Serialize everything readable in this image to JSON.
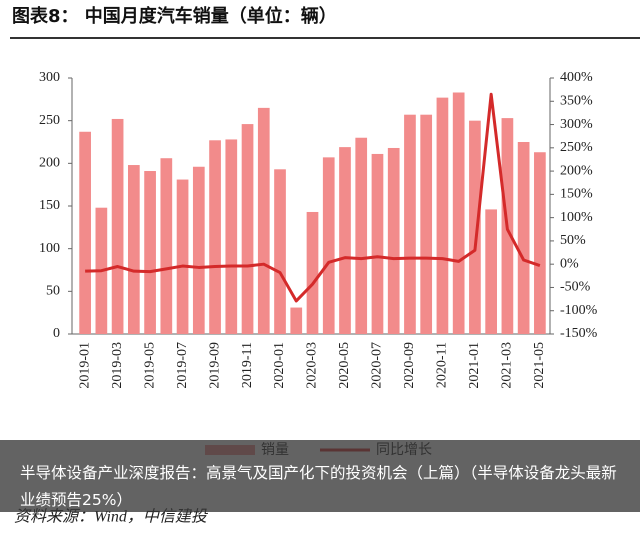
{
  "chart_data": {
    "type": "bar_line",
    "title": "图表8：  中国月度汽车销量（单位：辆）",
    "source": "资料来源：Wind，中信建投",
    "caption": "半导体设备产业深度报告：高景气及国产化下的投资机会（上篇）（半导体设备龙头最新业绩预告25%）",
    "categories": [
      "2019-01",
      null,
      "2019-03",
      null,
      "2019-05",
      null,
      "2019-07",
      null,
      "2019-09",
      null,
      "2019-11",
      null,
      "2020-01",
      null,
      "2020-03",
      null,
      "2020-05",
      null,
      "2020-07",
      null,
      "2020-09",
      null,
      "2020-11",
      null,
      "2021-01",
      null,
      "2021-03",
      null,
      "2021-05"
    ],
    "series": [
      {
        "name": "销量",
        "color": "#f28b8b",
        "values": [
          237,
          148,
          252,
          198,
          191,
          206,
          181,
          196,
          227,
          228,
          246,
          265,
          193,
          31,
          143,
          207,
          219,
          230,
          211,
          218,
          257,
          257,
          277,
          283,
          250,
          146,
          253,
          225,
          213
        ]
      },
      {
        "name": "同比增长",
        "color": "#d42a2a",
        "axis": "y2",
        "values": [
          -15,
          -14,
          -5,
          -15,
          -16,
          -10,
          -4,
          -7,
          -5,
          -4,
          -4,
          0,
          -18,
          -79,
          -43,
          4,
          14,
          12,
          16,
          12,
          13,
          13,
          12,
          6,
          30,
          365,
          75,
          9,
          -3
        ]
      }
    ],
    "ylim": [
      0,
      300
    ],
    "yticks": [
      0,
      50,
      100,
      150,
      200,
      250,
      300
    ],
    "y2lim": [
      -150,
      400
    ],
    "y2ticks": [
      {
        "value": -150,
        "label": "-150%"
      },
      {
        "value": -100,
        "label": "-100%"
      },
      {
        "value": -50,
        "label": "-50%"
      },
      {
        "value": 0,
        "label": "0%"
      },
      {
        "value": 50,
        "label": "50%"
      },
      {
        "value": 100,
        "label": "100%"
      },
      {
        "value": 150,
        "label": "150%"
      },
      {
        "value": 200,
        "label": "200%"
      },
      {
        "value": 250,
        "label": "250%"
      },
      {
        "value": 300,
        "label": "300%"
      },
      {
        "value": 350,
        "label": "350%"
      },
      {
        "value": 400,
        "label": "400%"
      }
    ]
  }
}
